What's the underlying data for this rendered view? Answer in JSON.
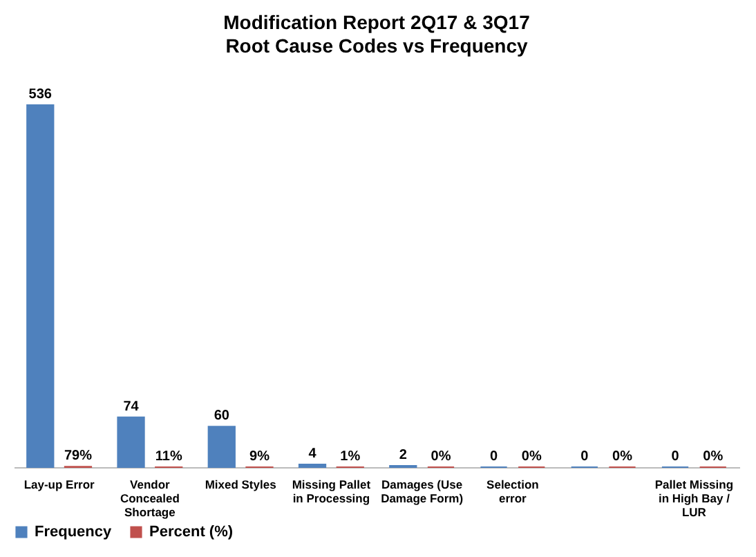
{
  "chart_data": {
    "type": "bar",
    "title": "Modification Report 2Q17 & 3Q17",
    "subtitle": "Root Cause Codes vs Frequency",
    "categories": [
      "Lay-up Error",
      "Vendor Concealed Shortage",
      "Mixed Styles",
      "Missing Pallet in Processing",
      "Damages (Use Damage Form)",
      "Selection error",
      null,
      "Pallet Missing in High Bay / LUR"
    ],
    "series": [
      {
        "name": "Frequency",
        "color": "#4f81bd",
        "values": [
          536,
          74,
          60,
          4,
          2,
          0,
          0,
          0
        ],
        "value_labels": [
          "536",
          "74",
          "60",
          "4",
          "2",
          "0",
          "0",
          "0"
        ]
      },
      {
        "name": "Percent (%)",
        "color": "#c0504d",
        "values": [
          0.79,
          0.11,
          0.09,
          0.01,
          0,
          0,
          0,
          0
        ],
        "value_labels": [
          "79%",
          "11%",
          "9%",
          "1%",
          "0%",
          "0%",
          "0%",
          "0%"
        ]
      }
    ],
    "legend": "bottom",
    "grid": false
  }
}
